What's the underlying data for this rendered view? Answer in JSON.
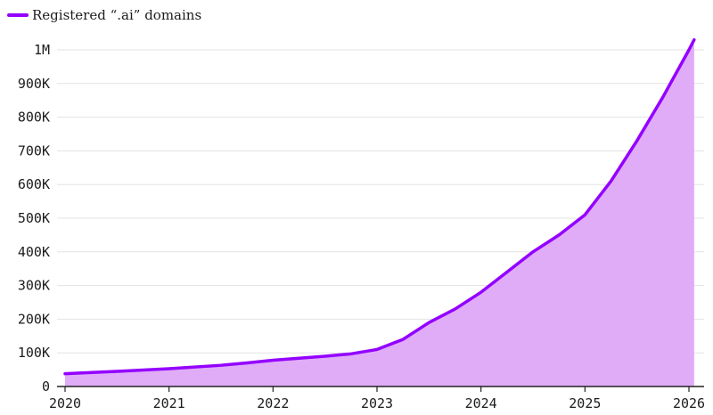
{
  "chart_data": {
    "type": "area",
    "series": [
      {
        "name": "Registered “.ai” domains",
        "points": [
          [
            2020.0,
            38000
          ],
          [
            2020.5,
            45000
          ],
          [
            2021.0,
            53000
          ],
          [
            2021.5,
            63000
          ],
          [
            2021.75,
            70000
          ],
          [
            2022.0,
            78000
          ],
          [
            2022.5,
            90000
          ],
          [
            2022.75,
            97000
          ],
          [
            2023.0,
            110000
          ],
          [
            2023.25,
            140000
          ],
          [
            2023.5,
            190000
          ],
          [
            2023.75,
            230000
          ],
          [
            2024.0,
            280000
          ],
          [
            2024.25,
            340000
          ],
          [
            2024.5,
            400000
          ],
          [
            2024.75,
            450000
          ],
          [
            2025.0,
            510000
          ],
          [
            2025.25,
            610000
          ],
          [
            2025.5,
            730000
          ],
          [
            2025.75,
            860000
          ],
          [
            2026.0,
            1000000
          ],
          [
            2026.05,
            1030000
          ]
        ]
      }
    ],
    "x_ticks": [
      "2020",
      "2021",
      "2022",
      "2023",
      "2024",
      "2025",
      "2026"
    ],
    "y_ticks": [
      "0",
      "100K",
      "200K",
      "300K",
      "400K",
      "500K",
      "600K",
      "700K",
      "800K",
      "900K",
      "1M"
    ],
    "xlim": [
      2020,
      2026
    ],
    "ylim": [
      0,
      1000000
    ],
    "grid": "horizontal",
    "legend_position": "top-left",
    "line_color": "#9400ff",
    "fill_color": "#e0abf7"
  }
}
